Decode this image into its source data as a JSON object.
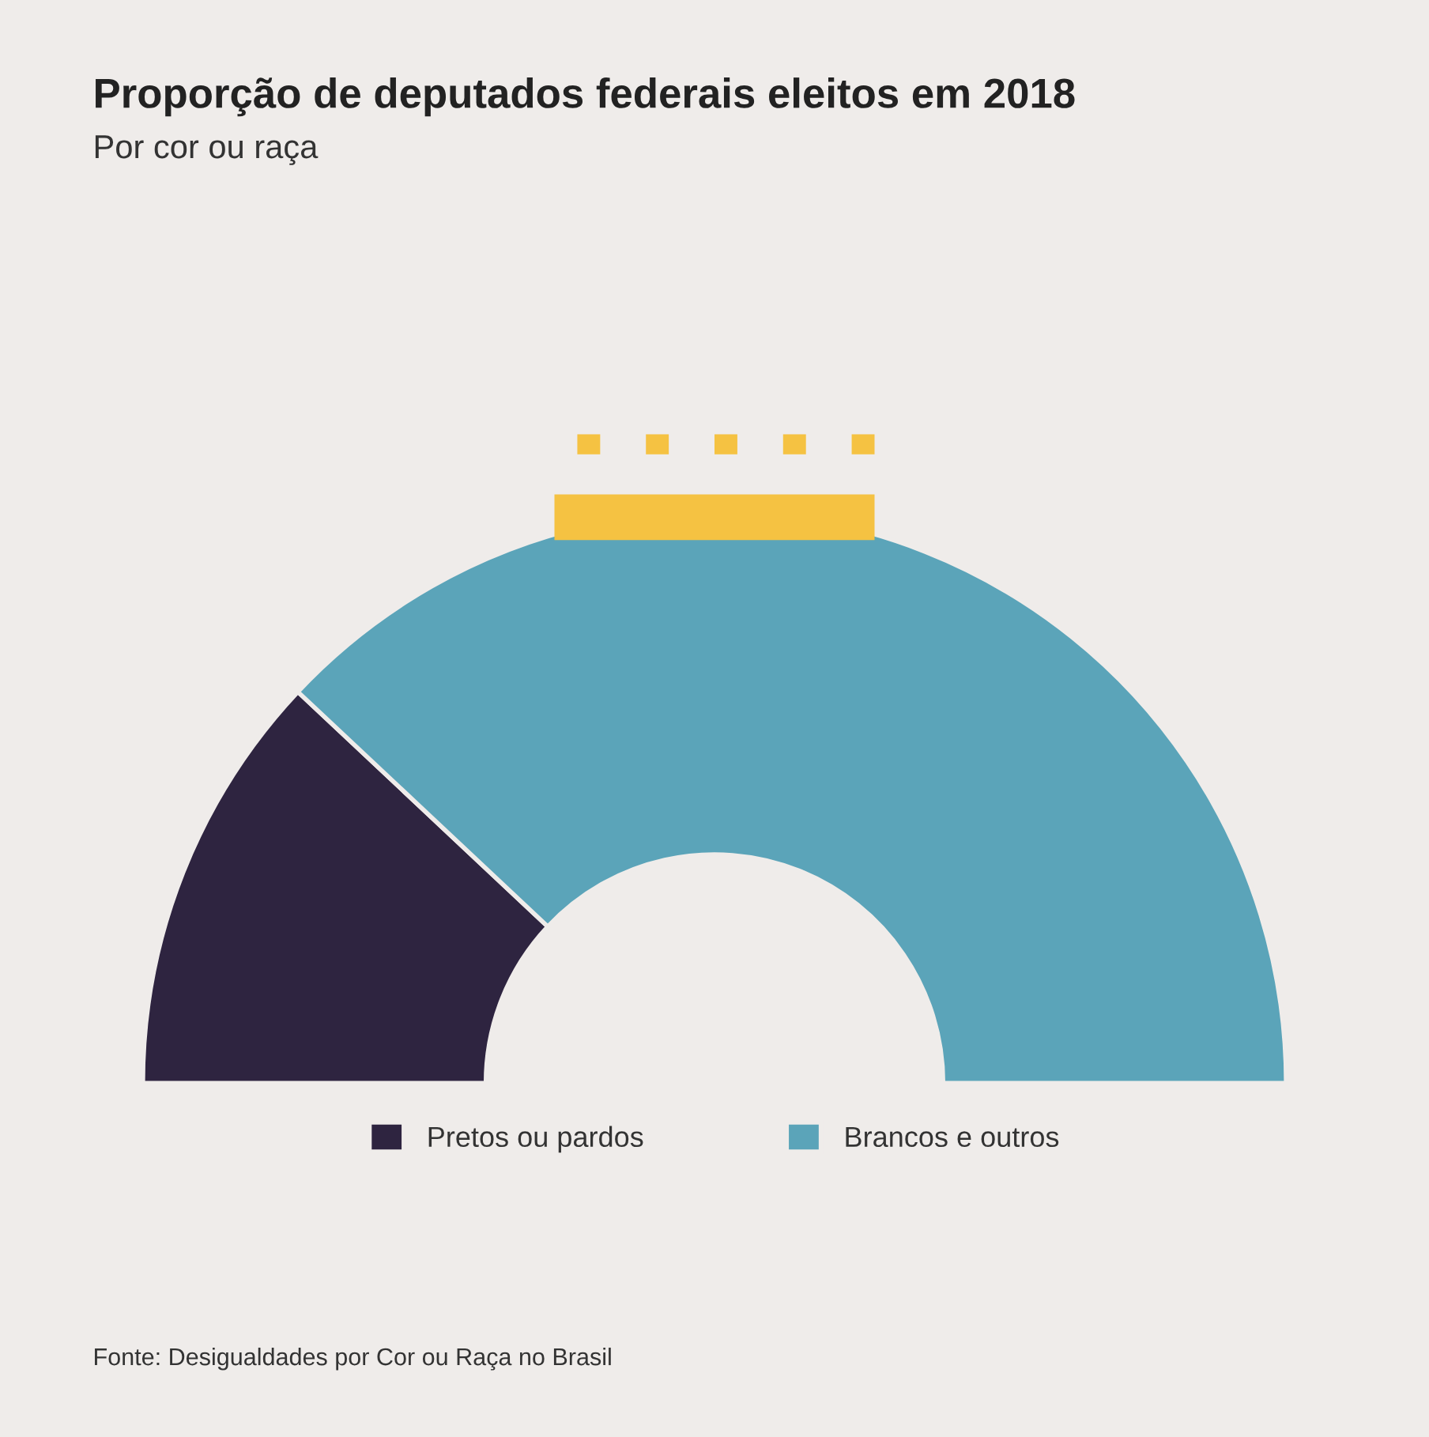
{
  "chart_data": {
    "type": "donut",
    "title": "Proporção de deputados federais eleitos em 2018",
    "subtitle": "Por cor ou raça",
    "categories": [
      "Pretos ou pardos",
      "Brancos e outros"
    ],
    "values": [
      24,
      76
    ],
    "colors": [
      "#2e2440",
      "#5ba4b9"
    ],
    "legend": "bottom",
    "annotations": [
      "Fonte: Desigualdades por Cor ou Raça no Brasil"
    ]
  }
}
